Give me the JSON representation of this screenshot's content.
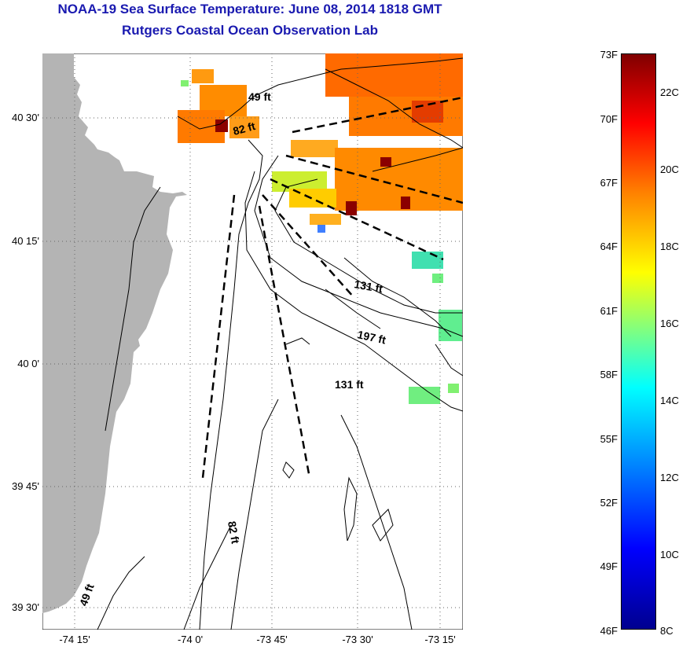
{
  "title": {
    "line1": "NOAA-19 Sea Surface Temperature:  June 08, 2014 1818 GMT",
    "line2": "Rutgers Coastal Ocean Observation Lab"
  },
  "axes": {
    "y_ticks": [
      "40 30'",
      "40 15'",
      "40 0'",
      "39 45'",
      "39 30'"
    ],
    "x_ticks": [
      "-74 15'",
      "-74 0'",
      "-73 45'",
      "-73 30'",
      "-73 15'"
    ]
  },
  "depth_labels": [
    "49 ft",
    "82 ft",
    "131 ft",
    "197 ft",
    "131 ft",
    "82 ft",
    "49 ft"
  ],
  "colorbar": {
    "fahrenheit": [
      "73F",
      "70F",
      "67F",
      "64F",
      "61F",
      "58F",
      "55F",
      "52F",
      "49F",
      "46F"
    ],
    "celsius": [
      "22C",
      "20C",
      "18C",
      "16C",
      "14C",
      "12C",
      "10C",
      "8C"
    ]
  },
  "colors": {
    "land": "#b4b4b4",
    "title": "#1a1ab0"
  }
}
